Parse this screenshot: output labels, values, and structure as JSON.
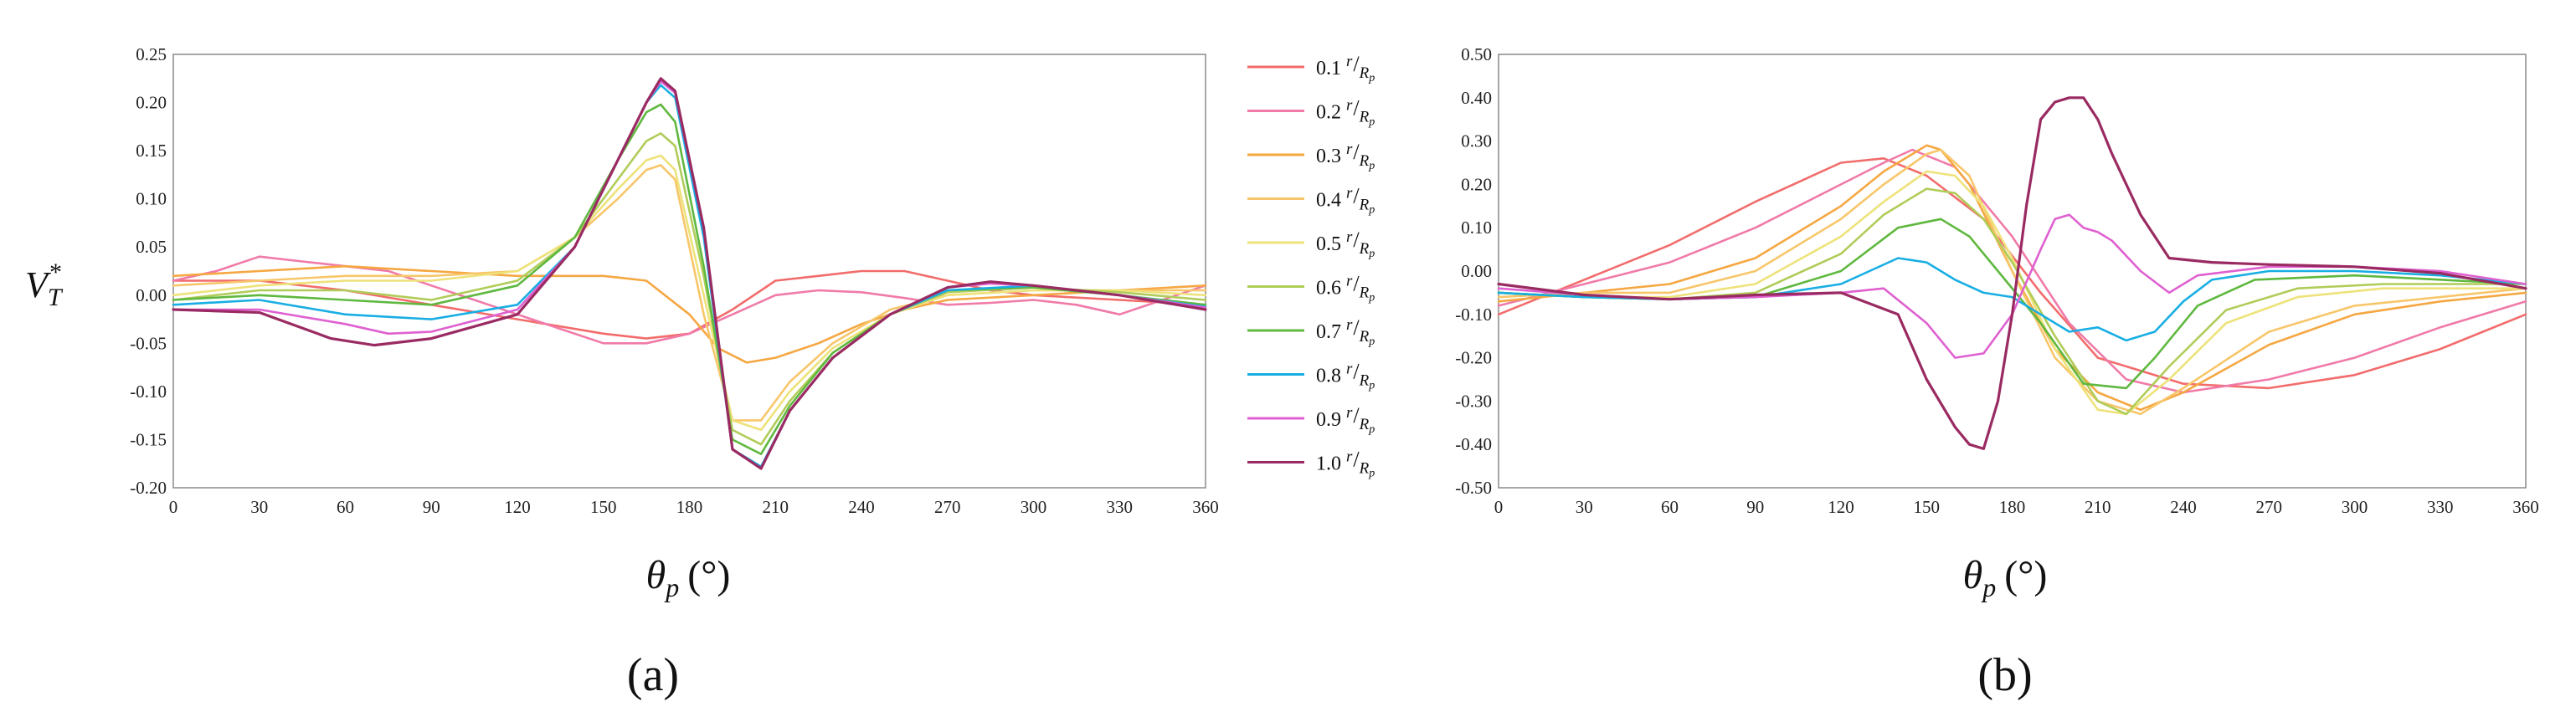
{
  "panels": [
    {
      "letter": "a",
      "label": "(a)",
      "ylabel": "V",
      "ylabel_sub": "T",
      "ylabel_sup": "*",
      "xlabel": "θ",
      "xlabel_sub": "p",
      "xlabel_unit": "(°)"
    },
    {
      "letter": "b",
      "label": "(b)",
      "xlabel": "θ",
      "xlabel_sub": "p",
      "xlabel_unit": "(°)"
    }
  ],
  "legend": {
    "ratio_symbol_num": "r",
    "ratio_symbol_den": "R",
    "ratio_symbol_den_sub": "p",
    "entries": [
      "0.1",
      "0.2",
      "0.3",
      "0.4",
      "0.5",
      "0.6",
      "0.7",
      "0.8",
      "0.9",
      "1.0"
    ],
    "colors": [
      "#f26c6c",
      "#f07aa8",
      "#f5a742",
      "#f8c66a",
      "#eee27a",
      "#b0cc58",
      "#5fb83f",
      "#18aee3",
      "#df60d0",
      "#9a2a62"
    ]
  },
  "chart_data": [
    {
      "type": "line",
      "title": "",
      "xlabel": "θp (°)",
      "ylabel": "V*T",
      "xlim": [
        0,
        360
      ],
      "ylim": [
        -0.2,
        0.25
      ],
      "xticks": [
        0,
        30,
        60,
        90,
        120,
        150,
        180,
        210,
        240,
        270,
        300,
        330,
        360
      ],
      "yticks": [
        "0.25",
        "0.20",
        "0.15",
        "0.10",
        "0.05",
        "0.00",
        "-0.05",
        "-0.10",
        "-0.15",
        "-0.20"
      ],
      "grid": false,
      "legend_position": "right",
      "series": [
        {
          "name": "0.1 r/Rp",
          "x": [
            0,
            30,
            60,
            90,
            120,
            150,
            165,
            180,
            195,
            210,
            225,
            240,
            255,
            270,
            285,
            300,
            330,
            360
          ],
          "y": [
            0.015,
            0.015,
            0.005,
            -0.01,
            -0.025,
            -0.04,
            -0.045,
            -0.04,
            -0.015,
            0.015,
            0.02,
            0.025,
            0.025,
            0.015,
            0.005,
            0.0,
            -0.005,
            -0.01
          ]
        },
        {
          "name": "0.2 r/Rp",
          "x": [
            0,
            15,
            30,
            45,
            60,
            75,
            90,
            105,
            120,
            135,
            150,
            165,
            180,
            195,
            210,
            225,
            240,
            255,
            270,
            285,
            300,
            315,
            330,
            345,
            360
          ],
          "y": [
            0.015,
            0.025,
            0.04,
            0.035,
            0.03,
            0.025,
            0.01,
            -0.005,
            -0.02,
            -0.035,
            -0.05,
            -0.05,
            -0.04,
            -0.02,
            0.0,
            0.005,
            0.003,
            -0.003,
            -0.01,
            -0.008,
            -0.005,
            -0.01,
            -0.02,
            -0.005,
            0.01
          ]
        },
        {
          "name": "0.3 r/Rp",
          "x": [
            0,
            30,
            60,
            90,
            120,
            150,
            165,
            180,
            190,
            200,
            210,
            225,
            240,
            255,
            270,
            300,
            330,
            360
          ],
          "y": [
            0.02,
            0.025,
            0.03,
            0.025,
            0.02,
            0.02,
            0.015,
            -0.02,
            -0.055,
            -0.07,
            -0.065,
            -0.05,
            -0.03,
            -0.015,
            -0.005,
            0.0,
            0.005,
            0.01
          ]
        },
        {
          "name": "0.4 r/Rp",
          "x": [
            0,
            30,
            60,
            90,
            120,
            140,
            155,
            165,
            170,
            175,
            185,
            195,
            205,
            215,
            230,
            250,
            270,
            300,
            330,
            360
          ],
          "y": [
            0.01,
            0.015,
            0.02,
            0.02,
            0.025,
            0.06,
            0.1,
            0.13,
            0.135,
            0.12,
            -0.02,
            -0.13,
            -0.13,
            -0.09,
            -0.05,
            -0.015,
            0.0,
            0.005,
            0.005,
            0.005
          ]
        },
        {
          "name": "0.5 r/Rp",
          "x": [
            0,
            30,
            60,
            90,
            120,
            140,
            155,
            165,
            170,
            175,
            185,
            195,
            205,
            215,
            230,
            250,
            270,
            300,
            330,
            360
          ],
          "y": [
            0.0,
            0.01,
            0.015,
            0.015,
            0.025,
            0.06,
            0.11,
            0.14,
            0.145,
            0.13,
            0.0,
            -0.13,
            -0.14,
            -0.1,
            -0.055,
            -0.02,
            0.0,
            0.005,
            0.005,
            0.0
          ]
        },
        {
          "name": "0.6 r/Rp",
          "x": [
            0,
            30,
            60,
            90,
            120,
            140,
            155,
            165,
            170,
            175,
            185,
            195,
            205,
            215,
            230,
            250,
            270,
            300,
            330,
            360
          ],
          "y": [
            -0.005,
            0.005,
            0.005,
            -0.005,
            0.015,
            0.06,
            0.12,
            0.16,
            0.168,
            0.155,
            0.02,
            -0.14,
            -0.155,
            -0.11,
            -0.06,
            -0.02,
            0.003,
            0.008,
            0.003,
            -0.005
          ]
        },
        {
          "name": "0.7 r/Rp",
          "x": [
            0,
            30,
            60,
            90,
            120,
            140,
            155,
            165,
            170,
            175,
            185,
            195,
            205,
            215,
            230,
            250,
            270,
            300,
            330,
            360
          ],
          "y": [
            -0.005,
            0.0,
            -0.005,
            -0.01,
            0.01,
            0.06,
            0.14,
            0.19,
            0.198,
            0.18,
            0.03,
            -0.15,
            -0.165,
            -0.115,
            -0.06,
            -0.02,
            0.005,
            0.008,
            0.0,
            -0.01
          ]
        },
        {
          "name": "0.8 r/Rp",
          "x": [
            0,
            30,
            60,
            90,
            120,
            140,
            155,
            165,
            170,
            175,
            185,
            195,
            205,
            215,
            230,
            250,
            270,
            300,
            330,
            360
          ],
          "y": [
            -0.01,
            -0.005,
            -0.02,
            -0.025,
            -0.01,
            0.05,
            0.14,
            0.2,
            0.218,
            0.205,
            0.06,
            -0.16,
            -0.178,
            -0.12,
            -0.065,
            -0.02,
            0.005,
            0.01,
            0.0,
            -0.012
          ]
        },
        {
          "name": "0.9 r/Rp",
          "x": [
            0,
            30,
            60,
            75,
            90,
            120,
            140,
            155,
            165,
            170,
            175,
            185,
            195,
            205,
            215,
            230,
            250,
            270,
            285,
            300,
            330,
            360
          ],
          "y": [
            -0.015,
            -0.015,
            -0.03,
            -0.04,
            -0.038,
            -0.015,
            0.05,
            0.14,
            0.2,
            0.222,
            0.21,
            0.07,
            -0.16,
            -0.18,
            -0.12,
            -0.065,
            -0.02,
            0.008,
            0.012,
            0.01,
            0.0,
            -0.013
          ]
        },
        {
          "name": "1.0 r/Rp",
          "x": [
            0,
            30,
            55,
            70,
            90,
            120,
            140,
            155,
            165,
            170,
            175,
            185,
            195,
            205,
            215,
            230,
            250,
            270,
            285,
            300,
            330,
            360
          ],
          "y": [
            -0.015,
            -0.018,
            -0.045,
            -0.052,
            -0.045,
            -0.02,
            0.05,
            0.14,
            0.2,
            0.225,
            0.212,
            0.07,
            -0.16,
            -0.18,
            -0.12,
            -0.065,
            -0.02,
            0.008,
            0.014,
            0.01,
            0.0,
            -0.015
          ]
        }
      ]
    },
    {
      "type": "line",
      "title": "",
      "xlabel": "θp (°)",
      "ylabel": "",
      "xlim": [
        0,
        360
      ],
      "ylim": [
        -0.5,
        0.5
      ],
      "xticks": [
        0,
        30,
        60,
        90,
        120,
        150,
        180,
        210,
        240,
        270,
        300,
        330,
        360
      ],
      "yticks": [
        "0.50",
        "0.40",
        "0.30",
        "0.20",
        "0.10",
        "0.00",
        "-0.10",
        "-0.20",
        "-0.30",
        "-0.40",
        "-0.50"
      ],
      "grid": false,
      "series": [
        {
          "name": "0.1 r/Rp",
          "x": [
            0,
            30,
            60,
            90,
            120,
            135,
            150,
            170,
            190,
            210,
            240,
            270,
            300,
            330,
            360
          ],
          "y": [
            -0.1,
            -0.02,
            0.06,
            0.16,
            0.25,
            0.26,
            0.22,
            0.12,
            -0.05,
            -0.2,
            -0.26,
            -0.27,
            -0.24,
            -0.18,
            -0.1
          ]
        },
        {
          "name": "0.2 r/Rp",
          "x": [
            0,
            30,
            60,
            90,
            120,
            135,
            145,
            160,
            180,
            200,
            220,
            240,
            270,
            300,
            330,
            360
          ],
          "y": [
            -0.08,
            -0.03,
            0.02,
            0.1,
            0.2,
            0.25,
            0.28,
            0.24,
            0.08,
            -0.12,
            -0.25,
            -0.28,
            -0.25,
            -0.2,
            -0.13,
            -0.07
          ]
        },
        {
          "name": "0.3 r/Rp",
          "x": [
            0,
            30,
            60,
            90,
            120,
            135,
            150,
            155,
            165,
            180,
            195,
            210,
            225,
            240,
            270,
            300,
            330,
            360
          ],
          "y": [
            -0.07,
            -0.05,
            -0.03,
            0.03,
            0.15,
            0.23,
            0.29,
            0.28,
            0.2,
            0.0,
            -0.18,
            -0.28,
            -0.32,
            -0.28,
            -0.17,
            -0.1,
            -0.07,
            -0.05
          ]
        },
        {
          "name": "0.4 r/Rp",
          "x": [
            0,
            30,
            60,
            90,
            120,
            135,
            150,
            155,
            165,
            180,
            195,
            210,
            225,
            240,
            270,
            300,
            330,
            360
          ],
          "y": [
            -0.06,
            -0.05,
            -0.05,
            0.0,
            0.12,
            0.2,
            0.27,
            0.28,
            0.22,
            0.0,
            -0.2,
            -0.3,
            -0.33,
            -0.27,
            -0.14,
            -0.08,
            -0.06,
            -0.04
          ]
        },
        {
          "name": "0.5 r/Rp",
          "x": [
            0,
            30,
            60,
            90,
            120,
            135,
            150,
            160,
            170,
            180,
            195,
            210,
            220,
            235,
            255,
            280,
            310,
            360
          ],
          "y": [
            -0.05,
            -0.06,
            -0.06,
            -0.03,
            0.08,
            0.16,
            0.23,
            0.22,
            0.15,
            0.03,
            -0.18,
            -0.32,
            -0.33,
            -0.25,
            -0.12,
            -0.06,
            -0.04,
            -0.04
          ]
        },
        {
          "name": "0.6 r/Rp",
          "x": [
            0,
            30,
            60,
            90,
            120,
            135,
            150,
            160,
            170,
            180,
            195,
            210,
            220,
            235,
            255,
            280,
            310,
            360
          ],
          "y": [
            -0.05,
            -0.06,
            -0.065,
            -0.05,
            0.04,
            0.13,
            0.19,
            0.18,
            0.12,
            0.02,
            -0.15,
            -0.3,
            -0.33,
            -0.22,
            -0.09,
            -0.04,
            -0.03,
            -0.03
          ]
        },
        {
          "name": "0.7 r/Rp",
          "x": [
            0,
            30,
            60,
            90,
            120,
            140,
            155,
            165,
            175,
            190,
            205,
            220,
            230,
            245,
            265,
            300,
            360
          ],
          "y": [
            -0.05,
            -0.06,
            -0.065,
            -0.06,
            0.0,
            0.1,
            0.12,
            0.08,
            0.0,
            -0.12,
            -0.26,
            -0.27,
            -0.2,
            -0.08,
            -0.02,
            -0.01,
            -0.03
          ]
        },
        {
          "name": "0.8 r/Rp",
          "x": [
            0,
            30,
            60,
            90,
            120,
            130,
            140,
            150,
            160,
            170,
            180,
            190,
            200,
            210,
            220,
            230,
            240,
            250,
            270,
            300,
            330,
            360
          ],
          "y": [
            -0.05,
            -0.06,
            -0.065,
            -0.06,
            -0.03,
            0.0,
            0.03,
            0.02,
            -0.02,
            -0.05,
            -0.06,
            -0.1,
            -0.14,
            -0.13,
            -0.16,
            -0.14,
            -0.07,
            -0.02,
            0.0,
            0.0,
            -0.01,
            -0.03
          ]
        },
        {
          "name": "0.9 r/Rp",
          "x": [
            0,
            30,
            60,
            90,
            120,
            135,
            150,
            160,
            170,
            180,
            190,
            195,
            200,
            205,
            210,
            215,
            225,
            235,
            245,
            270,
            300,
            330,
            360
          ],
          "y": [
            -0.04,
            -0.055,
            -0.065,
            -0.06,
            -0.05,
            -0.04,
            -0.12,
            -0.2,
            -0.19,
            -0.1,
            0.05,
            0.12,
            0.13,
            0.1,
            0.09,
            0.07,
            0.0,
            -0.05,
            -0.01,
            0.01,
            0.01,
            0.0,
            -0.03
          ]
        },
        {
          "name": "1.0 r/Rp",
          "x": [
            0,
            30,
            60,
            90,
            120,
            140,
            150,
            160,
            165,
            170,
            175,
            180,
            185,
            190,
            195,
            200,
            205,
            210,
            215,
            225,
            235,
            250,
            270,
            300,
            330,
            360
          ],
          "y": [
            -0.03,
            -0.055,
            -0.065,
            -0.055,
            -0.05,
            -0.1,
            -0.25,
            -0.36,
            -0.4,
            -0.41,
            -0.3,
            -0.1,
            0.15,
            0.35,
            0.39,
            0.4,
            0.4,
            0.35,
            0.27,
            0.13,
            0.03,
            0.02,
            0.015,
            0.01,
            -0.005,
            -0.04
          ]
        }
      ]
    }
  ]
}
